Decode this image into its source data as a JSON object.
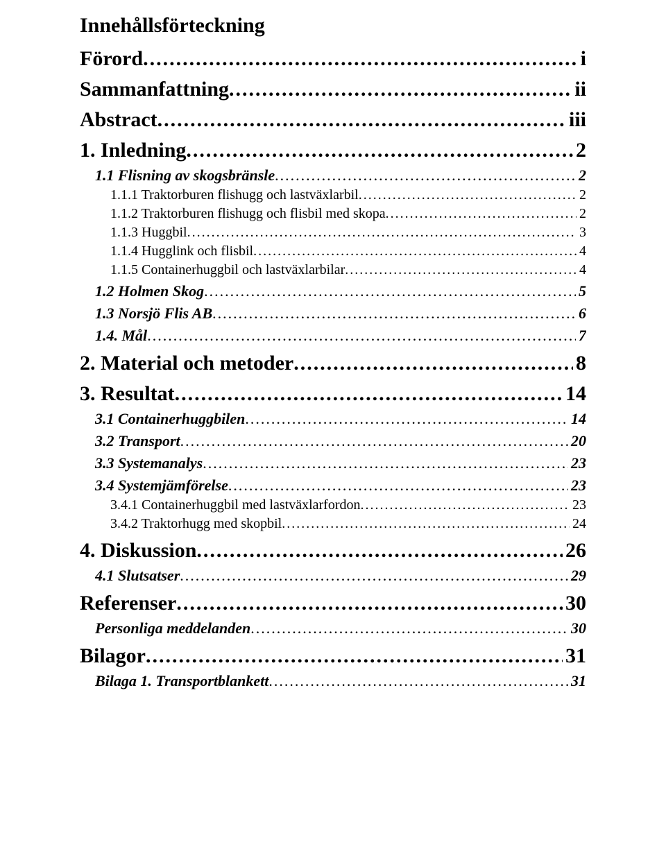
{
  "title": "Innehållsförteckning",
  "entries": [
    {
      "level": 0,
      "label": "Förord",
      "page": "i"
    },
    {
      "level": 0,
      "label": "Sammanfattning",
      "page": "ii"
    },
    {
      "level": 0,
      "label": "Abstract",
      "page": " iii"
    },
    {
      "level": 0,
      "label": "1. Inledning",
      "page": "2"
    },
    {
      "level": 1,
      "label": "1.1 Flisning av skogsbränsle",
      "page": " 2"
    },
    {
      "level": 2,
      "label": "1.1.1 Traktorburen flishugg och lastväxlarbil",
      "page": " 2"
    },
    {
      "level": 2,
      "label": "1.1.2 Traktorburen flishugg och flisbil med skopa",
      "page": " 2"
    },
    {
      "level": 2,
      "label": "1.1.3 Huggbil",
      "page": " 3"
    },
    {
      "level": 2,
      "label": "1.1.4 Hugglink och flisbil",
      "page": " 4"
    },
    {
      "level": 2,
      "label": "1.1.5 Containerhuggbil och lastväxlarbilar",
      "page": " 4"
    },
    {
      "level": 1,
      "label": "1.2 Holmen Skog",
      "page": " 5"
    },
    {
      "level": 1,
      "label": "1.3 Norsjö Flis AB",
      "page": " 6"
    },
    {
      "level": 1,
      "label": "1.4. Mål",
      "page": " 7"
    },
    {
      "level": 0,
      "label": "2. Material och metoder",
      "page": "8"
    },
    {
      "level": 0,
      "label": "3. Resultat",
      "page": "14"
    },
    {
      "level": 1,
      "label": "3.1 Containerhuggbilen",
      "page": " 14"
    },
    {
      "level": 1,
      "label": "3.2 Transport",
      "page": " 20"
    },
    {
      "level": 1,
      "label": "3.3 Systemanalys",
      "page": " 23"
    },
    {
      "level": 1,
      "label": "3.4 Systemjämförelse",
      "page": " 23"
    },
    {
      "level": 2,
      "label": "3.4.1 Containerhuggbil med lastväxlarfordon",
      "page": " 23"
    },
    {
      "level": 2,
      "label": "3.4.2 Traktorhugg med skopbil",
      "page": " 24"
    },
    {
      "level": 0,
      "label": "4. Diskussion",
      "page": "26"
    },
    {
      "level": 1,
      "label": "4.1 Slutsatser",
      "page": " 29"
    },
    {
      "level": 0,
      "label": "Referenser",
      "page": "30"
    },
    {
      "level": 1,
      "label": "Personliga meddelanden",
      "page": " 30"
    },
    {
      "level": 0,
      "label": "Bilagor",
      "page": "31"
    },
    {
      "level": 1,
      "label": "Bilaga 1. Transportblankett",
      "page": " 31"
    }
  ]
}
